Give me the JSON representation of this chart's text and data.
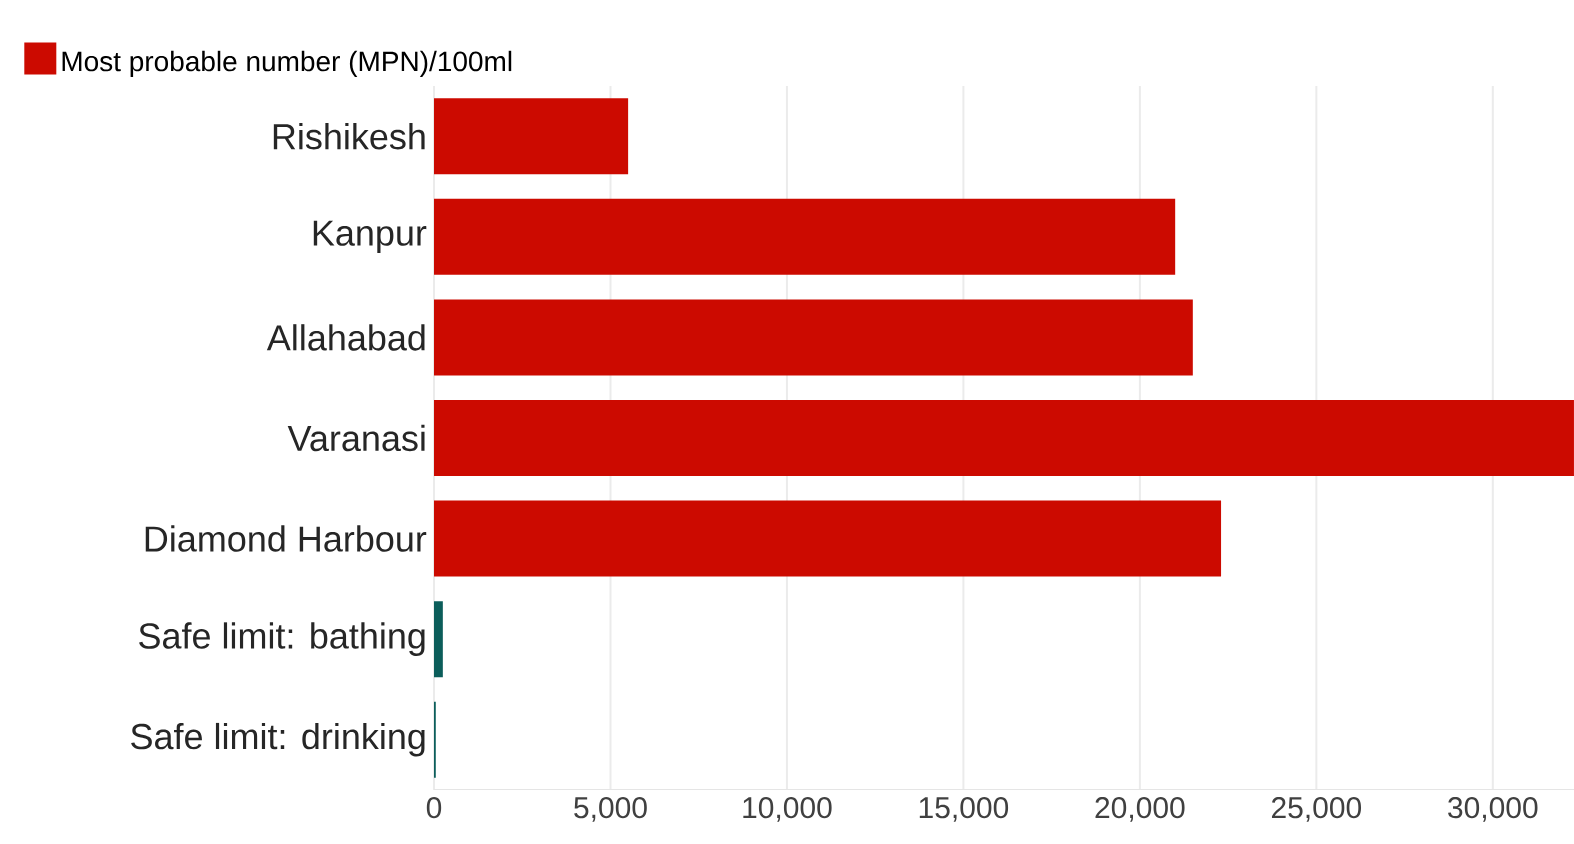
{
  "chart_data": {
    "type": "bar",
    "orientation": "horizontal",
    "categories": [
      "Rishikesh",
      "Kanpur",
      "Allahabad",
      "Varanasi",
      "Diamond Harbour",
      "Safe limit: bathing",
      "Safe limit: drinking"
    ],
    "series": [
      {
        "name": "Most probable number (MPN)/100ml",
        "color": "#cc0a00",
        "values": [
          5500,
          21000,
          21500,
          32300,
          22300,
          null,
          null
        ]
      },
      {
        "color": "#0b5d5a",
        "values": [
          null,
          null,
          null,
          null,
          null,
          250,
          50
        ]
      }
    ],
    "xlim": [
      0,
      32300
    ],
    "xticks": [
      {
        "value": 0,
        "label": "0"
      },
      {
        "value": 5000,
        "label": "5,000"
      },
      {
        "value": 10000,
        "label": "10,000"
      },
      {
        "value": 15000,
        "label": "15,000"
      },
      {
        "value": 20000,
        "label": "20,000"
      },
      {
        "value": 25000,
        "label": "25,000"
      },
      {
        "value": 30000,
        "label": "30,000"
      }
    ],
    "grid": "x",
    "legend": "top left"
  }
}
